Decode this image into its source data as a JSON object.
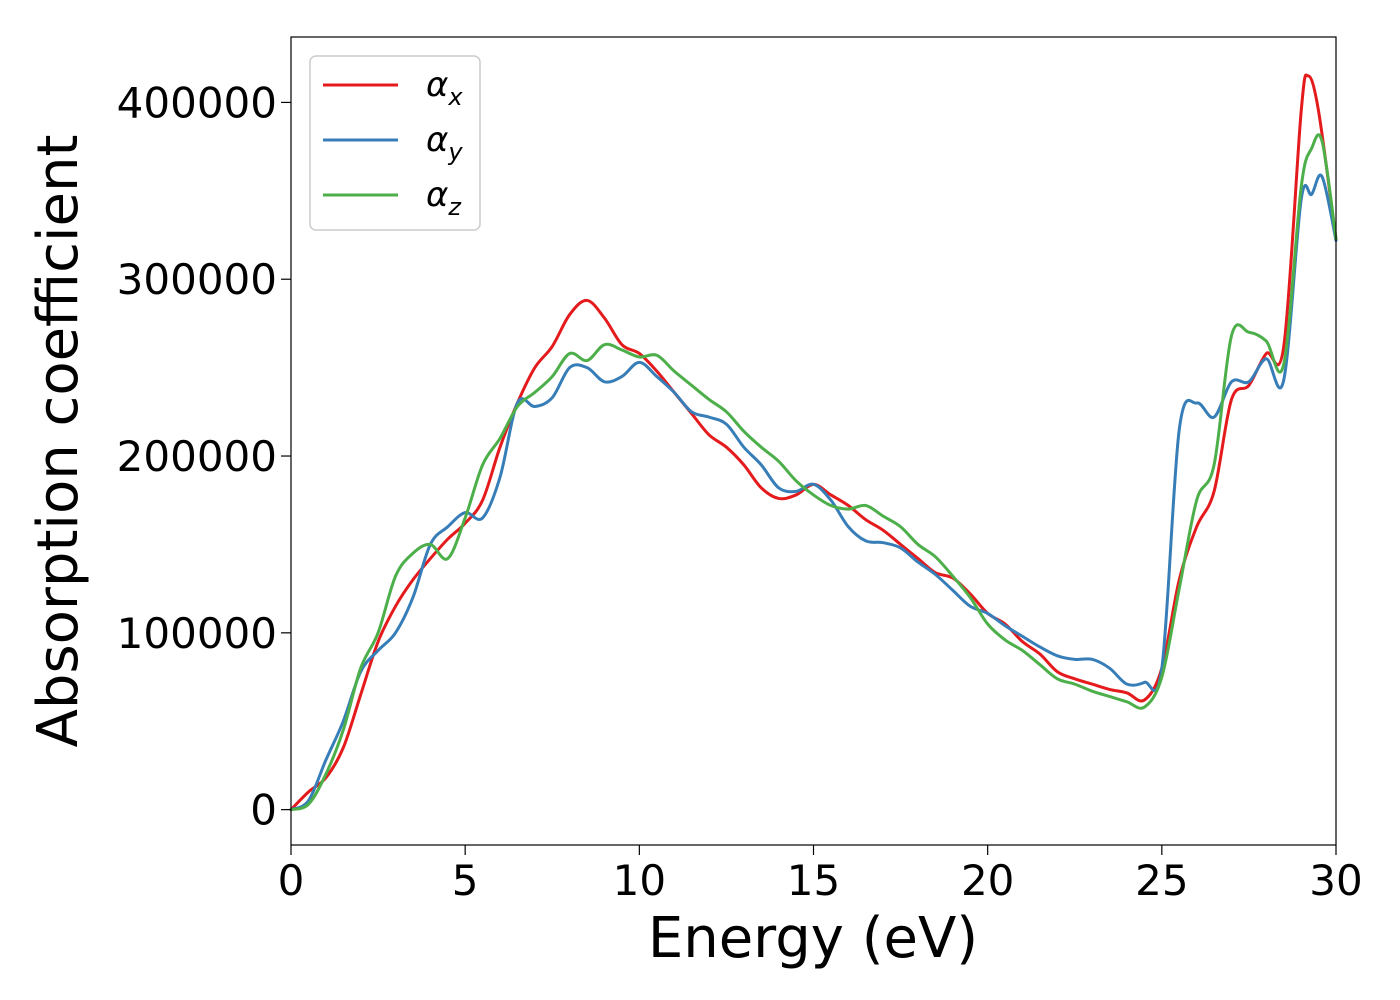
{
  "chart_data": {
    "type": "line",
    "title": "",
    "xlabel": "Energy (eV)",
    "ylabel": "Absorption coefficient",
    "xlim": [
      0,
      30
    ],
    "ylim": [
      -20000,
      437000
    ],
    "xticks": [
      0,
      5,
      10,
      15,
      20,
      25,
      30
    ],
    "xtick_labels": [
      "0",
      "5",
      "10",
      "15",
      "20",
      "25",
      "30"
    ],
    "yticks": [
      0,
      100000,
      200000,
      300000,
      400000
    ],
    "ytick_labels": [
      "0",
      "100000",
      "200000",
      "300000",
      "400000"
    ],
    "grid": false,
    "legend_position": "top-left",
    "series": [
      {
        "name": "α_x",
        "label_base": "α",
        "label_sub": "x",
        "color": "#e41a1c",
        "x": [
          0,
          0.5,
          1.0,
          1.5,
          2.0,
          2.5,
          3.0,
          3.5,
          4.0,
          4.5,
          5.0,
          5.5,
          6.0,
          6.5,
          7.0,
          7.5,
          8.0,
          8.5,
          9.0,
          9.5,
          10.0,
          10.5,
          11.0,
          11.5,
          12.0,
          12.5,
          13.0,
          13.5,
          14.0,
          14.5,
          15.0,
          15.5,
          16.0,
          16.5,
          17.0,
          17.5,
          18.0,
          18.5,
          19.0,
          19.5,
          20.0,
          20.5,
          21.0,
          21.5,
          22.0,
          22.5,
          23.0,
          23.5,
          24.0,
          24.5,
          25.0,
          25.5,
          26.0,
          26.5,
          27.0,
          27.5,
          28.0,
          28.5,
          29.0,
          29.2,
          29.5,
          30.0
        ],
        "y": [
          0,
          10000,
          18000,
          35000,
          65000,
          95000,
          115000,
          130000,
          142000,
          153000,
          162000,
          175000,
          205000,
          230000,
          250000,
          262000,
          280000,
          288000,
          278000,
          263000,
          258000,
          248000,
          236000,
          224000,
          212000,
          205000,
          195000,
          182000,
          176000,
          178000,
          184000,
          178000,
          172000,
          164000,
          158000,
          150000,
          142000,
          134000,
          131000,
          122000,
          111000,
          105000,
          95000,
          88000,
          78000,
          74000,
          71000,
          68000,
          66000,
          62000,
          80000,
          130000,
          160000,
          180000,
          232000,
          240000,
          258000,
          262000,
          395000,
          415000,
          395000,
          322000
        ]
      },
      {
        "name": "α_y",
        "label_base": "α",
        "label_sub": "y",
        "color": "#377eb8",
        "x": [
          0,
          0.5,
          1.0,
          1.5,
          2.0,
          2.5,
          3.0,
          3.5,
          4.0,
          4.5,
          5.0,
          5.5,
          6.0,
          6.5,
          7.0,
          7.5,
          8.0,
          8.5,
          9.0,
          9.5,
          10.0,
          10.5,
          11.0,
          11.5,
          12.0,
          12.5,
          13.0,
          13.5,
          14.0,
          14.5,
          15.0,
          15.5,
          16.0,
          16.5,
          17.0,
          17.5,
          18.0,
          18.5,
          19.0,
          19.5,
          20.0,
          20.5,
          21.0,
          21.5,
          22.0,
          22.5,
          23.0,
          23.5,
          24.0,
          24.5,
          25.0,
          25.5,
          26.0,
          26.5,
          27.0,
          27.5,
          28.0,
          28.5,
          29.0,
          29.3,
          29.6,
          30.0
        ],
        "y": [
          0,
          5000,
          28000,
          50000,
          78000,
          90000,
          100000,
          120000,
          150000,
          160000,
          168000,
          165000,
          188000,
          230000,
          228000,
          233000,
          250000,
          250000,
          242000,
          245000,
          253000,
          245000,
          236000,
          225000,
          222000,
          218000,
          205000,
          195000,
          182000,
          180000,
          184000,
          175000,
          160000,
          152000,
          151000,
          148000,
          140000,
          133000,
          124000,
          115000,
          111000,
          104000,
          98000,
          92000,
          87000,
          85000,
          85000,
          80000,
          71000,
          72000,
          80000,
          215000,
          230000,
          222000,
          242000,
          242000,
          255000,
          243000,
          345000,
          348000,
          358000,
          322000
        ]
      },
      {
        "name": "α_z",
        "label_base": "α",
        "label_sub": "z",
        "color": "#4daf4a",
        "x": [
          0,
          0.5,
          1.0,
          1.5,
          2.0,
          2.5,
          3.0,
          3.5,
          4.0,
          4.5,
          5.0,
          5.5,
          6.0,
          6.5,
          7.0,
          7.5,
          8.0,
          8.5,
          9.0,
          9.5,
          10.0,
          10.5,
          11.0,
          11.5,
          12.0,
          12.5,
          13.0,
          13.5,
          14.0,
          14.5,
          15.0,
          15.5,
          16.0,
          16.5,
          17.0,
          17.5,
          18.0,
          18.5,
          19.0,
          19.5,
          20.0,
          20.5,
          21.0,
          21.5,
          22.0,
          22.5,
          23.0,
          23.5,
          24.0,
          24.5,
          25.0,
          25.5,
          26.0,
          26.5,
          27.0,
          27.5,
          28.0,
          28.5,
          29.0,
          29.3,
          29.6,
          30.0
        ],
        "y": [
          0,
          3000,
          20000,
          45000,
          80000,
          100000,
          132000,
          145000,
          150000,
          142000,
          165000,
          195000,
          210000,
          228000,
          236000,
          245000,
          258000,
          254000,
          263000,
          260000,
          256000,
          257000,
          248000,
          240000,
          232000,
          225000,
          214000,
          205000,
          197000,
          186000,
          178000,
          172000,
          170000,
          172000,
          166000,
          160000,
          150000,
          143000,
          132000,
          120000,
          105000,
          96000,
          90000,
          82000,
          74000,
          71000,
          67000,
          64000,
          61000,
          58000,
          75000,
          125000,
          175000,
          195000,
          268000,
          270000,
          265000,
          252000,
          352000,
          374000,
          378000,
          323000
        ]
      }
    ]
  }
}
